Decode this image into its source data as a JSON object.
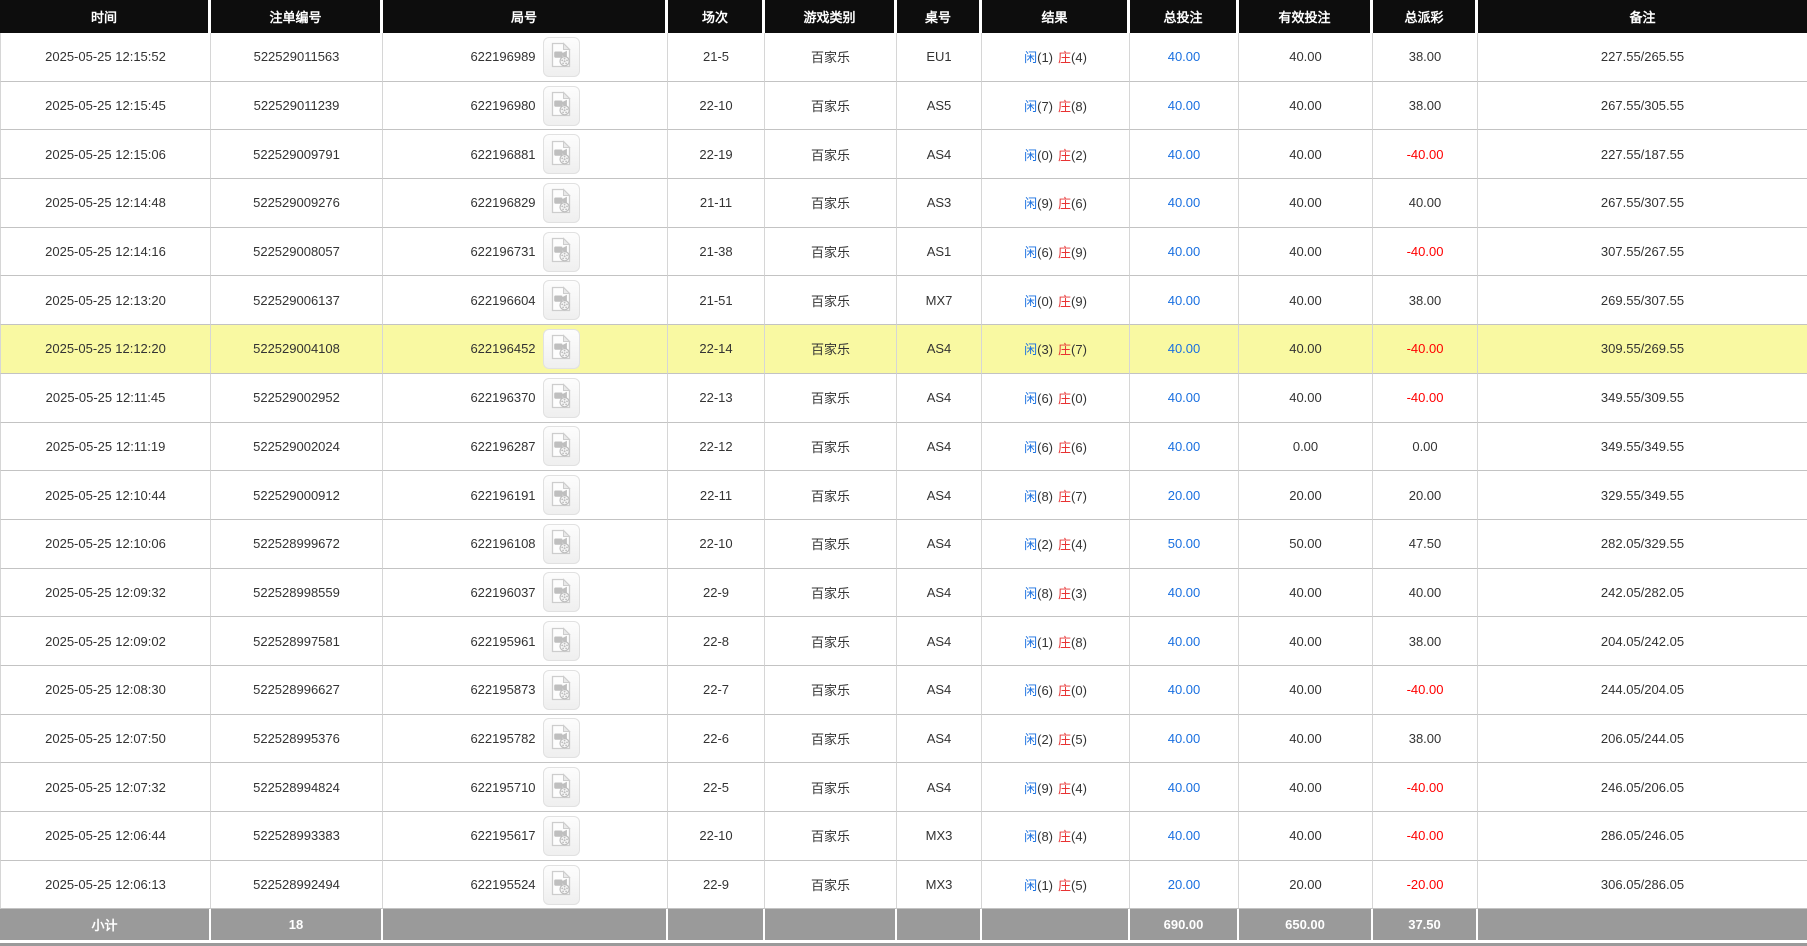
{
  "table": {
    "columns": [
      {
        "key": "time",
        "label": "时间"
      },
      {
        "key": "bet_id",
        "label": "注单编号"
      },
      {
        "key": "round",
        "label": "局号"
      },
      {
        "key": "session",
        "label": "场次"
      },
      {
        "key": "game",
        "label": "游戏类别"
      },
      {
        "key": "table",
        "label": "桌号"
      },
      {
        "key": "result",
        "label": "结果"
      },
      {
        "key": "total",
        "label": "总投注"
      },
      {
        "key": "valid",
        "label": "有效投注"
      },
      {
        "key": "payout",
        "label": "总派彩"
      },
      {
        "key": "remark",
        "label": "备注"
      }
    ],
    "result_labels": {
      "player": "闲",
      "banker": "庄"
    },
    "rows": [
      {
        "time": "2025-05-25 12:15:52",
        "bet_id": "522529011563",
        "round": "622196989",
        "session": "21-5",
        "game": "百家乐",
        "table": "EU1",
        "player_num": "(1)",
        "banker_num": "(4)",
        "total": "40.00",
        "valid": "40.00",
        "payout": "38.00",
        "remark": "227.55/265.55",
        "highlight": false
      },
      {
        "time": "2025-05-25 12:15:45",
        "bet_id": "522529011239",
        "round": "622196980",
        "session": "22-10",
        "game": "百家乐",
        "table": "AS5",
        "player_num": "(7)",
        "banker_num": "(8)",
        "total": "40.00",
        "valid": "40.00",
        "payout": "38.00",
        "remark": "267.55/305.55",
        "highlight": false
      },
      {
        "time": "2025-05-25 12:15:06",
        "bet_id": "522529009791",
        "round": "622196881",
        "session": "22-19",
        "game": "百家乐",
        "table": "AS4",
        "player_num": "(0)",
        "banker_num": "(2)",
        "total": "40.00",
        "valid": "40.00",
        "payout": "-40.00",
        "remark": "227.55/187.55",
        "highlight": false
      },
      {
        "time": "2025-05-25 12:14:48",
        "bet_id": "522529009276",
        "round": "622196829",
        "session": "21-11",
        "game": "百家乐",
        "table": "AS3",
        "player_num": "(9)",
        "banker_num": "(6)",
        "total": "40.00",
        "valid": "40.00",
        "payout": "40.00",
        "remark": "267.55/307.55",
        "highlight": false
      },
      {
        "time": "2025-05-25 12:14:16",
        "bet_id": "522529008057",
        "round": "622196731",
        "session": "21-38",
        "game": "百家乐",
        "table": "AS1",
        "player_num": "(6)",
        "banker_num": "(9)",
        "total": "40.00",
        "valid": "40.00",
        "payout": "-40.00",
        "remark": "307.55/267.55",
        "highlight": false
      },
      {
        "time": "2025-05-25 12:13:20",
        "bet_id": "522529006137",
        "round": "622196604",
        "session": "21-51",
        "game": "百家乐",
        "table": "MX7",
        "player_num": "(0)",
        "banker_num": "(9)",
        "total": "40.00",
        "valid": "40.00",
        "payout": "38.00",
        "remark": "269.55/307.55",
        "highlight": false
      },
      {
        "time": "2025-05-25 12:12:20",
        "bet_id": "522529004108",
        "round": "622196452",
        "session": "22-14",
        "game": "百家乐",
        "table": "AS4",
        "player_num": "(3)",
        "banker_num": "(7)",
        "total": "40.00",
        "valid": "40.00",
        "payout": "-40.00",
        "remark": "309.55/269.55",
        "highlight": true
      },
      {
        "time": "2025-05-25 12:11:45",
        "bet_id": "522529002952",
        "round": "622196370",
        "session": "22-13",
        "game": "百家乐",
        "table": "AS4",
        "player_num": "(6)",
        "banker_num": "(0)",
        "total": "40.00",
        "valid": "40.00",
        "payout": "-40.00",
        "remark": "349.55/309.55",
        "highlight": false
      },
      {
        "time": "2025-05-25 12:11:19",
        "bet_id": "522529002024",
        "round": "622196287",
        "session": "22-12",
        "game": "百家乐",
        "table": "AS4",
        "player_num": "(6)",
        "banker_num": "(6)",
        "total": "40.00",
        "valid": "0.00",
        "payout": "0.00",
        "remark": "349.55/349.55",
        "highlight": false
      },
      {
        "time": "2025-05-25 12:10:44",
        "bet_id": "522529000912",
        "round": "622196191",
        "session": "22-11",
        "game": "百家乐",
        "table": "AS4",
        "player_num": "(8)",
        "banker_num": "(7)",
        "total": "20.00",
        "valid": "20.00",
        "payout": "20.00",
        "remark": "329.55/349.55",
        "highlight": false
      },
      {
        "time": "2025-05-25 12:10:06",
        "bet_id": "522528999672",
        "round": "622196108",
        "session": "22-10",
        "game": "百家乐",
        "table": "AS4",
        "player_num": "(2)",
        "banker_num": "(4)",
        "total": "50.00",
        "valid": "50.00",
        "payout": "47.50",
        "remark": "282.05/329.55",
        "highlight": false
      },
      {
        "time": "2025-05-25 12:09:32",
        "bet_id": "522528998559",
        "round": "622196037",
        "session": "22-9",
        "game": "百家乐",
        "table": "AS4",
        "player_num": "(8)",
        "banker_num": "(3)",
        "total": "40.00",
        "valid": "40.00",
        "payout": "40.00",
        "remark": "242.05/282.05",
        "highlight": false
      },
      {
        "time": "2025-05-25 12:09:02",
        "bet_id": "522528997581",
        "round": "622195961",
        "session": "22-8",
        "game": "百家乐",
        "table": "AS4",
        "player_num": "(1)",
        "banker_num": "(8)",
        "total": "40.00",
        "valid": "40.00",
        "payout": "38.00",
        "remark": "204.05/242.05",
        "highlight": false
      },
      {
        "time": "2025-05-25 12:08:30",
        "bet_id": "522528996627",
        "round": "622195873",
        "session": "22-7",
        "game": "百家乐",
        "table": "AS4",
        "player_num": "(6)",
        "banker_num": "(0)",
        "total": "40.00",
        "valid": "40.00",
        "payout": "-40.00",
        "remark": "244.05/204.05",
        "highlight": false
      },
      {
        "time": "2025-05-25 12:07:50",
        "bet_id": "522528995376",
        "round": "622195782",
        "session": "22-6",
        "game": "百家乐",
        "table": "AS4",
        "player_num": "(2)",
        "banker_num": "(5)",
        "total": "40.00",
        "valid": "40.00",
        "payout": "38.00",
        "remark": "206.05/244.05",
        "highlight": false
      },
      {
        "time": "2025-05-25 12:07:32",
        "bet_id": "522528994824",
        "round": "622195710",
        "session": "22-5",
        "game": "百家乐",
        "table": "AS4",
        "player_num": "(9)",
        "banker_num": "(4)",
        "total": "40.00",
        "valid": "40.00",
        "payout": "-40.00",
        "remark": "246.05/206.05",
        "highlight": false
      },
      {
        "time": "2025-05-25 12:06:44",
        "bet_id": "522528993383",
        "round": "622195617",
        "session": "22-10",
        "game": "百家乐",
        "table": "MX3",
        "player_num": "(8)",
        "banker_num": "(4)",
        "total": "40.00",
        "valid": "40.00",
        "payout": "-40.00",
        "remark": "286.05/246.05",
        "highlight": false
      },
      {
        "time": "2025-05-25 12:06:13",
        "bet_id": "522528992494",
        "round": "622195524",
        "session": "22-9",
        "game": "百家乐",
        "table": "MX3",
        "player_num": "(1)",
        "banker_num": "(5)",
        "total": "20.00",
        "valid": "20.00",
        "payout": "-20.00",
        "remark": "306.05/286.05",
        "highlight": false
      }
    ],
    "footer": {
      "label": "小计",
      "count": "18",
      "total": "690.00",
      "valid": "650.00",
      "payout": "37.50"
    }
  },
  "colors": {
    "header_bg": "#0d0d0d",
    "footer_bg": "#9a9a9a",
    "highlight_row": "#f9f9a2",
    "link_blue": "#1a70e0",
    "banker_red": "#e83333",
    "negative_red": "#ff0000"
  },
  "icons": {
    "video_replay": "video-replay-icon"
  }
}
